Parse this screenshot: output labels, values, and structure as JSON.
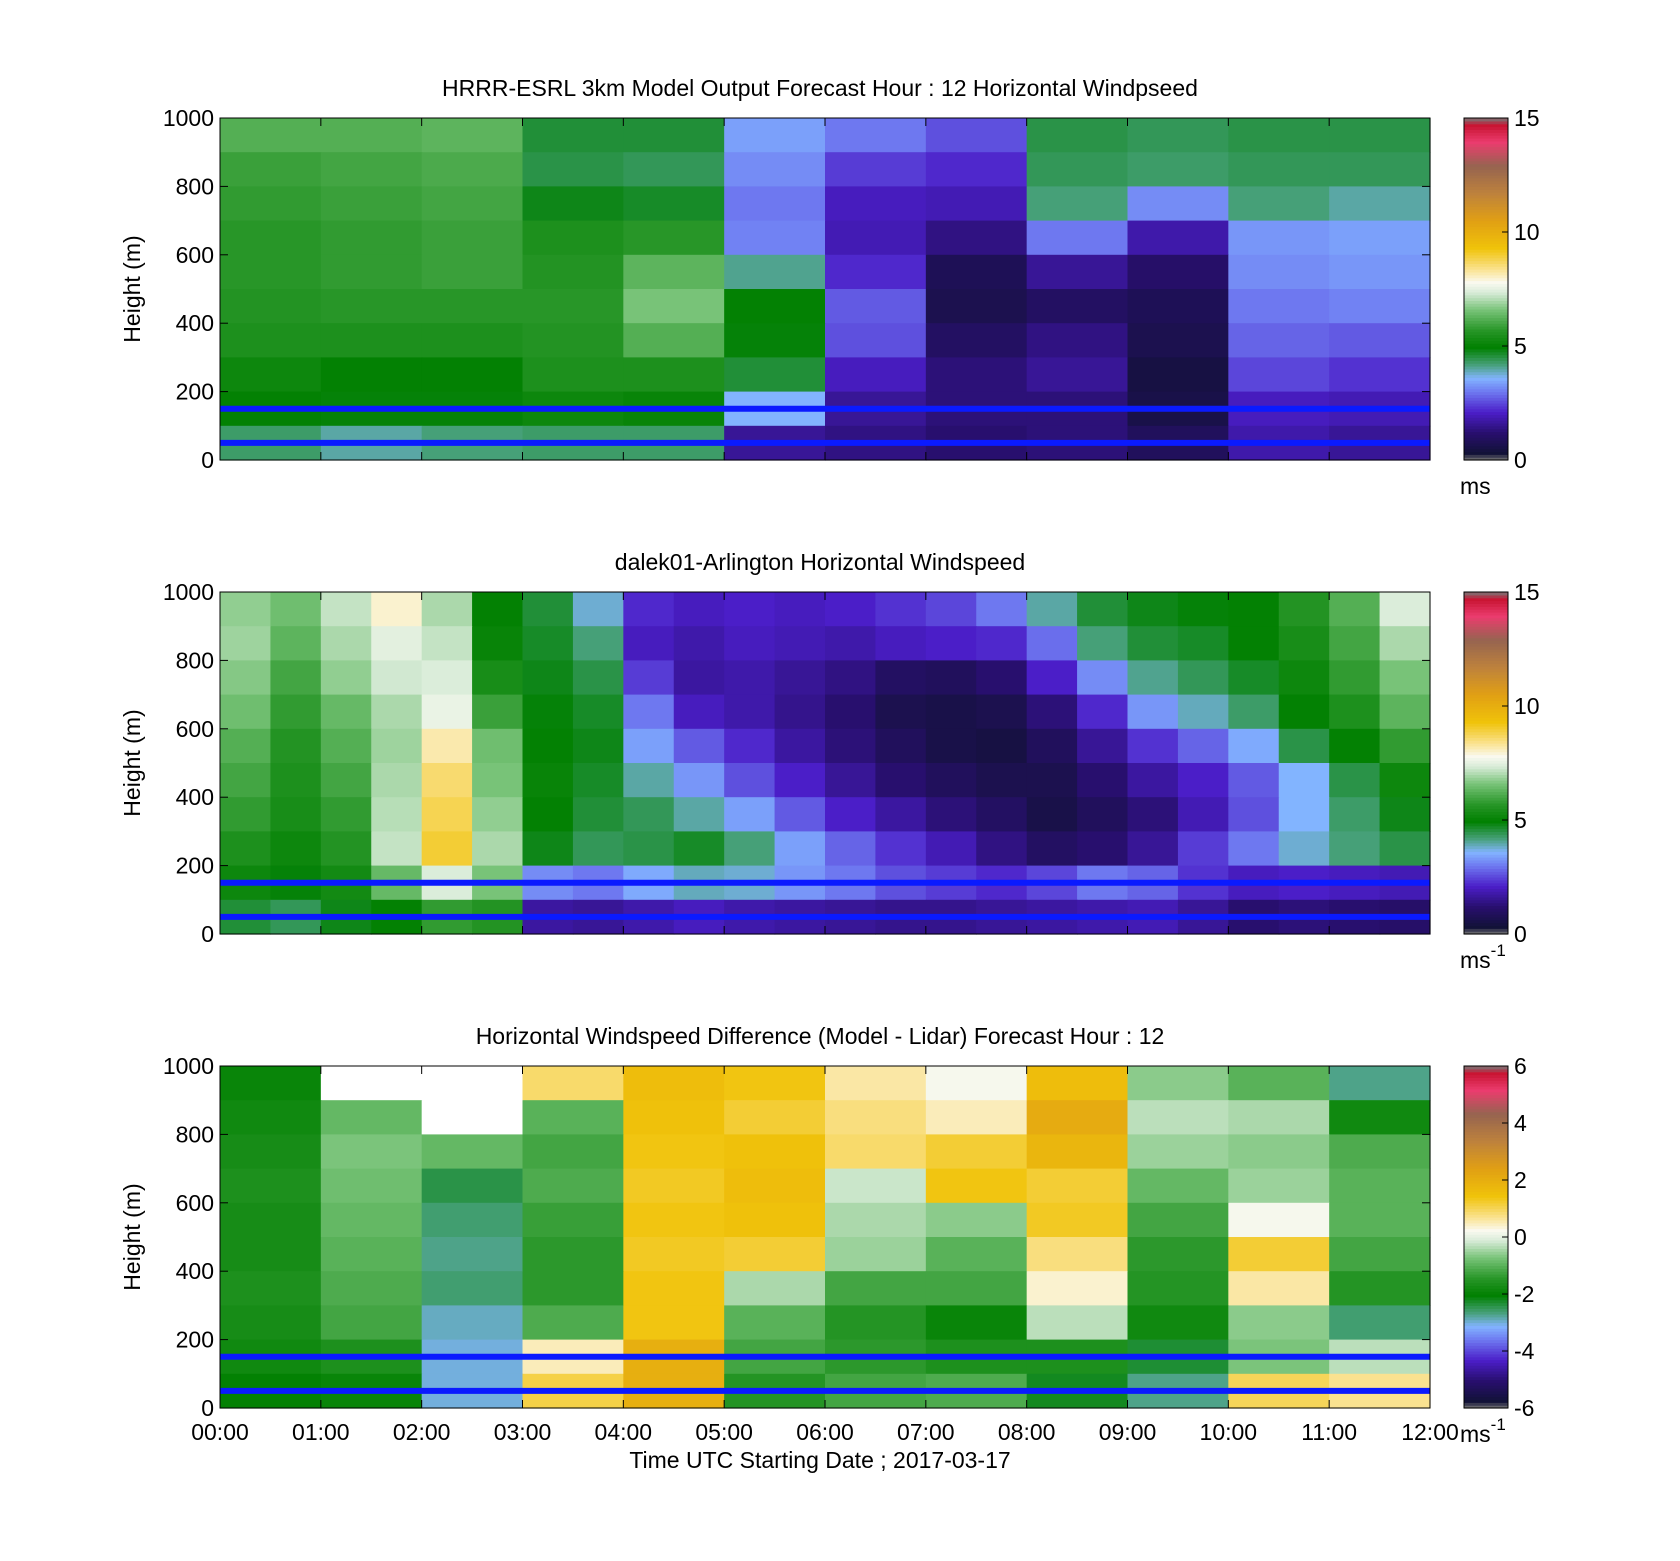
{
  "chart_data": [
    {
      "type": "heatmap",
      "title": "HRRR-ESRL 3km Model Output   Forecast Hour : 12 Horizontal Windpseed",
      "ylabel": "Height (m)",
      "xlabel": "",
      "ylim": [
        0,
        1000
      ],
      "yticks": [
        "0",
        "200",
        "400",
        "600",
        "800",
        "1000"
      ],
      "xlim": [
        "00:00",
        "12:00"
      ],
      "colorbar": {
        "range": [
          0,
          15
        ],
        "ticks": [
          "0",
          "5",
          "10",
          "15"
        ],
        "unit": "ms",
        "unit_sup": ""
      },
      "reference_heights_m": [
        50,
        150
      ],
      "x_times": [
        "00:30",
        "01:30",
        "02:30",
        "03:30",
        "04:30",
        "05:30",
        "06:30",
        "07:30",
        "08:30",
        "09:30",
        "10:30",
        "11:30"
      ],
      "y_heights_m": [
        950,
        850,
        750,
        650,
        550,
        450,
        350,
        250,
        150,
        50
      ],
      "values": [
        [
          6.2,
          6.2,
          6.3,
          4.6,
          4.6,
          3.4,
          3.0,
          2.6,
          4.5,
          4.4,
          4.5,
          4.5
        ],
        [
          5.9,
          6.0,
          6.1,
          4.5,
          4.4,
          3.2,
          2.4,
          2.2,
          4.4,
          4.3,
          4.4,
          4.4
        ],
        [
          5.8,
          5.9,
          6.0,
          4.8,
          4.7,
          3.0,
          2.0,
          1.9,
          4.2,
          3.2,
          4.2,
          4.0
        ],
        [
          5.7,
          5.8,
          5.9,
          5.5,
          5.7,
          3.1,
          1.9,
          1.4,
          3.0,
          1.8,
          3.3,
          3.4
        ],
        [
          5.7,
          5.8,
          5.9,
          5.6,
          6.3,
          4.1,
          2.2,
          0.8,
          1.6,
          1.1,
          3.2,
          3.3
        ],
        [
          5.6,
          5.7,
          5.7,
          5.7,
          6.6,
          5.0,
          2.7,
          0.7,
          1.0,
          0.8,
          3.0,
          3.1
        ],
        [
          5.5,
          5.5,
          5.5,
          5.6,
          6.2,
          4.9,
          2.6,
          1.0,
          1.4,
          0.7,
          2.8,
          2.7
        ],
        [
          5.2,
          5.0,
          5.0,
          5.5,
          5.5,
          4.6,
          2.0,
          1.3,
          1.6,
          0.5,
          2.5,
          2.3
        ],
        [
          5.0,
          4.9,
          4.9,
          5.2,
          5.1,
          3.6,
          1.6,
          1.3,
          1.3,
          0.6,
          2.0,
          1.9
        ],
        [
          4.3,
          4.0,
          4.2,
          4.3,
          4.3,
          1.6,
          1.4,
          1.2,
          1.3,
          0.9,
          1.8,
          1.6
        ]
      ]
    },
    {
      "type": "heatmap",
      "title": "dalek01-Arlington  Horizontal Windspeed",
      "ylabel": "Height (m)",
      "xlabel": "",
      "ylim": [
        0,
        1000
      ],
      "yticks": [
        "0",
        "200",
        "400",
        "600",
        "800",
        "1000"
      ],
      "xlim": [
        "00:00",
        "12:00"
      ],
      "colorbar": {
        "range": [
          0,
          15
        ],
        "ticks": [
          "0",
          "5",
          "10",
          "15"
        ],
        "unit": "ms",
        "unit_sup": "-1"
      },
      "reference_heights_m": [
        50,
        150
      ],
      "x_times": [
        "00:15",
        "00:45",
        "01:15",
        "01:45",
        "02:15",
        "02:45",
        "03:15",
        "03:45",
        "04:15",
        "04:45",
        "05:15",
        "05:45",
        "06:15",
        "06:45",
        "07:15",
        "07:45",
        "08:15",
        "08:45",
        "09:15",
        "09:45",
        "10:15",
        "10:45",
        "11:15",
        "11:45"
      ],
      "y_heights_m": [
        950,
        850,
        750,
        650,
        550,
        450,
        350,
        250,
        150,
        50
      ],
      "values": [
        [
          6.8,
          6.5,
          7.2,
          8.0,
          7.0,
          5.0,
          4.6,
          3.8,
          2.2,
          2.0,
          2.1,
          2.0,
          2.1,
          2.3,
          2.5,
          3.0,
          4.0,
          4.6,
          4.8,
          4.9,
          5.0,
          5.6,
          6.2,
          7.4
        ],
        [
          6.9,
          6.3,
          7.0,
          7.5,
          7.2,
          5.1,
          4.7,
          4.2,
          2.0,
          1.8,
          2.0,
          1.9,
          1.8,
          2.0,
          2.1,
          2.2,
          2.9,
          4.2,
          4.6,
          4.7,
          5.0,
          5.4,
          6.0,
          7.0
        ],
        [
          6.7,
          6.0,
          6.8,
          7.3,
          7.4,
          5.4,
          4.8,
          4.5,
          2.4,
          1.7,
          1.8,
          1.6,
          1.4,
          1.0,
          0.9,
          1.2,
          2.1,
          3.2,
          4.1,
          4.4,
          4.7,
          5.2,
          5.8,
          6.6
        ],
        [
          6.5,
          5.8,
          6.4,
          7.0,
          7.6,
          5.9,
          4.9,
          4.7,
          3.0,
          2.0,
          1.8,
          1.5,
          1.2,
          0.7,
          0.6,
          0.7,
          1.3,
          2.2,
          3.3,
          3.9,
          4.3,
          5.0,
          5.5,
          6.3
        ],
        [
          6.2,
          5.6,
          6.2,
          6.9,
          8.2,
          6.5,
          5.0,
          4.8,
          3.4,
          2.7,
          2.2,
          1.7,
          1.3,
          0.9,
          0.6,
          0.5,
          0.9,
          1.6,
          2.3,
          2.8,
          3.5,
          4.5,
          5.0,
          5.8
        ],
        [
          6.0,
          5.5,
          6.0,
          7.0,
          8.6,
          6.6,
          5.1,
          4.7,
          4.0,
          3.3,
          2.6,
          2.1,
          1.6,
          1.2,
          0.9,
          0.7,
          0.7,
          1.2,
          1.7,
          2.1,
          2.7,
          3.6,
          4.5,
          5.2
        ],
        [
          5.8,
          5.4,
          5.8,
          7.1,
          8.8,
          6.8,
          5.0,
          4.6,
          4.4,
          4.0,
          3.4,
          2.7,
          2.1,
          1.7,
          1.3,
          1.0,
          0.6,
          0.9,
          1.3,
          1.9,
          2.6,
          3.6,
          4.3,
          4.8
        ],
        [
          5.5,
          5.2,
          5.6,
          7.2,
          9.0,
          7.0,
          4.8,
          4.4,
          4.5,
          4.7,
          4.2,
          3.4,
          2.8,
          2.3,
          1.9,
          1.4,
          1.0,
          1.2,
          1.6,
          2.4,
          3.0,
          3.8,
          4.2,
          4.5
        ],
        [
          5.2,
          4.9,
          5.3,
          6.4,
          7.4,
          6.6,
          3.2,
          3.0,
          3.5,
          3.9,
          3.8,
          3.3,
          3.0,
          2.6,
          2.4,
          2.2,
          2.5,
          3.0,
          2.8,
          2.3,
          2.0,
          2.1,
          2.0,
          1.9
        ],
        [
          4.6,
          4.4,
          4.8,
          5.0,
          5.8,
          5.6,
          1.7,
          1.6,
          1.8,
          2.0,
          1.8,
          1.7,
          1.6,
          1.5,
          1.5,
          1.6,
          1.7,
          1.8,
          1.9,
          1.6,
          1.2,
          1.3,
          1.2,
          1.1
        ]
      ]
    },
    {
      "type": "heatmap",
      "title": "Horizontal Windspeed Difference (Model - Lidar) Forecast Hour : 12",
      "ylabel": "Height (m)",
      "xlabel": "Time UTC  Starting Date ; 2017-03-17",
      "ylim": [
        0,
        1000
      ],
      "yticks": [
        "0",
        "200",
        "400",
        "600",
        "800",
        "1000"
      ],
      "xticks": [
        "00:00",
        "01:00",
        "02:00",
        "03:00",
        "04:00",
        "05:00",
        "06:00",
        "07:00",
        "08:00",
        "09:00",
        "10:00",
        "11:00",
        "12:00"
      ],
      "colorbar": {
        "range": [
          -6,
          6
        ],
        "ticks": [
          "-6",
          "-4",
          "-2",
          "0",
          "2",
          "4",
          "6"
        ],
        "unit": "ms",
        "unit_sup": "-1"
      },
      "reference_heights_m": [
        50,
        150
      ],
      "x_times": [
        "00:30",
        "01:30",
        "02:30",
        "03:30",
        "04:30",
        "05:30",
        "06:30",
        "07:30",
        "08:30",
        "09:30",
        "10:30",
        "11:30"
      ],
      "y_heights_m": [
        950,
        850,
        750,
        650,
        550,
        450,
        350,
        250,
        150,
        50
      ],
      "values": [
        [
          -1.9,
          null,
          null,
          0.9,
          1.6,
          1.4,
          0.6,
          0.2,
          1.6,
          -0.6,
          -1.0,
          -2.7
        ],
        [
          -1.8,
          -0.9,
          null,
          -1.0,
          1.5,
          1.2,
          0.8,
          0.5,
          2.1,
          -0.3,
          -0.4,
          -1.8
        ],
        [
          -1.7,
          -0.7,
          -0.9,
          -1.2,
          1.4,
          1.5,
          0.9,
          1.2,
          1.8,
          -0.5,
          -0.6,
          -1.1
        ],
        [
          -1.6,
          -0.8,
          -2.4,
          -1.1,
          1.3,
          1.6,
          -0.2,
          1.4,
          1.2,
          -0.9,
          -0.5,
          -1.0
        ],
        [
          -1.7,
          -0.9,
          -2.6,
          -1.3,
          1.4,
          1.5,
          -0.4,
          -0.6,
          1.3,
          -1.2,
          0.2,
          -1.0
        ],
        [
          -1.7,
          -1.0,
          -2.7,
          -1.4,
          1.3,
          1.2,
          -0.5,
          -1.0,
          0.8,
          -1.4,
          1.2,
          -1.2
        ],
        [
          -1.6,
          -1.1,
          -2.6,
          -1.4,
          1.4,
          -0.4,
          -1.2,
          -1.2,
          0.4,
          -1.5,
          0.6,
          -1.5
        ],
        [
          -1.7,
          -1.2,
          -2.9,
          -1.1,
          1.4,
          -1.0,
          -1.5,
          -1.9,
          -0.3,
          -1.8,
          -0.6,
          -2.6
        ],
        [
          -1.8,
          -1.6,
          -3.0,
          0.5,
          2.0,
          -1.2,
          -1.4,
          -1.6,
          -1.6,
          -2.3,
          -0.7,
          -0.3
        ],
        [
          -2.0,
          -1.9,
          -3.0,
          1.1,
          2.0,
          -1.5,
          -1.2,
          -1.1,
          -2.2,
          -2.7,
          1.0,
          0.7
        ]
      ]
    }
  ]
}
